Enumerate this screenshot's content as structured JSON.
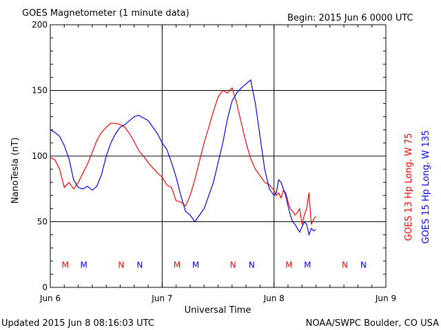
{
  "header": {
    "title": "GOES Magnetometer (1 minute data)",
    "begin": "Begin:  2015 Jun 6 0000 UTC"
  },
  "footer": {
    "updated": "Updated 2015 Jun  8 08:16:03 UTC",
    "source": "NOAA/SWPC Boulder, CO USA"
  },
  "colors": {
    "red": "#ff0000",
    "blue": "#0000ff",
    "axis": "#000000"
  },
  "chart_data": {
    "type": "line",
    "xlabel": "Universal Time",
    "ylabel": "NanoTesla (nT)",
    "xlim": [
      0,
      72
    ],
    "ylim": [
      0,
      200
    ],
    "x_unit": "hours since Jun 6 0000 UTC",
    "x_ticks": [
      {
        "value": 0,
        "label": "Jun 6"
      },
      {
        "value": 24,
        "label": "Jun 7"
      },
      {
        "value": 48,
        "label": "Jun 8"
      },
      {
        "value": 72,
        "label": "Jun 9"
      }
    ],
    "y_ticks": [
      {
        "value": 0,
        "label": "0"
      },
      {
        "value": 50,
        "label": "50"
      },
      {
        "value": 100,
        "label": "100"
      },
      {
        "value": 150,
        "label": "150"
      },
      {
        "value": 200,
        "label": "200"
      }
    ],
    "grid": true,
    "series": [
      {
        "name": "GOES 13 Hp  Long. W 75",
        "color": "#ff0000",
        "x": [
          0,
          1,
          2,
          3,
          4,
          5,
          6,
          7,
          8,
          9,
          10,
          11,
          12,
          13,
          14,
          15,
          16,
          17,
          18,
          19,
          20,
          21,
          22,
          23,
          24,
          25,
          26,
          27,
          28,
          29,
          30,
          31,
          32,
          33,
          34,
          35,
          36,
          37,
          38,
          39,
          40,
          41,
          42,
          43,
          44,
          45,
          46,
          47,
          48,
          48.5,
          49,
          49.5,
          50,
          50.5,
          51,
          51.5,
          52,
          52.5,
          53,
          53.5,
          54,
          54.5,
          55,
          55.5,
          56,
          56.5,
          57
        ],
        "values": [
          99,
          97,
          90,
          76,
          80,
          75,
          80,
          87,
          94,
          103,
          112,
          118,
          122,
          125,
          125,
          124,
          122,
          117,
          111,
          104,
          100,
          95,
          91,
          87,
          84,
          78,
          76,
          66,
          65,
          62,
          70,
          82,
          96,
          110,
          122,
          134,
          145,
          150,
          148,
          152,
          140,
          125,
          110,
          98,
          90,
          85,
          80,
          78,
          74,
          70,
          72,
          68,
          74,
          72,
          65,
          60,
          58,
          55,
          57,
          60,
          48,
          55,
          60,
          72,
          48,
          52,
          54
        ]
      },
      {
        "name": "GOES 15 Hp  Long. W 135",
        "color": "#0000ff",
        "x": [
          0,
          1,
          2,
          3,
          4,
          5,
          6,
          7,
          8,
          9,
          10,
          11,
          12,
          13,
          14,
          15,
          16,
          17,
          18,
          19,
          20,
          21,
          22,
          23,
          24,
          25,
          26,
          27,
          28,
          29,
          30,
          31,
          32,
          33,
          34,
          35,
          36,
          37,
          38,
          39,
          40,
          41,
          42,
          43,
          44,
          45,
          46,
          47,
          48,
          48.5,
          49,
          49.5,
          50,
          50.5,
          51,
          51.5,
          52,
          52.5,
          53,
          53.5,
          54,
          54.5,
          55,
          55.5,
          56,
          56.5,
          57
        ],
        "values": [
          120,
          118,
          115,
          108,
          98,
          82,
          76,
          75,
          77,
          74,
          77,
          86,
          100,
          110,
          117,
          122,
          124,
          127,
          130,
          131,
          129,
          127,
          122,
          117,
          110,
          105,
          95,
          84,
          70,
          58,
          55,
          50,
          55,
          60,
          70,
          80,
          95,
          110,
          128,
          142,
          148,
          152,
          155,
          158,
          140,
          115,
          90,
          75,
          70,
          72,
          82,
          80,
          75,
          70,
          62,
          55,
          50,
          48,
          45,
          42,
          46,
          50,
          48,
          40,
          45,
          43,
          44
        ]
      }
    ],
    "event_markers": [
      {
        "label": "M",
        "x": 3.2,
        "color": "#ff0000"
      },
      {
        "label": "M",
        "x": 7.2,
        "color": "#0000ff"
      },
      {
        "label": "N",
        "x": 15.2,
        "color": "#ff0000"
      },
      {
        "label": "N",
        "x": 19.2,
        "color": "#0000ff"
      },
      {
        "label": "M",
        "x": 27.2,
        "color": "#ff0000"
      },
      {
        "label": "M",
        "x": 31.2,
        "color": "#0000ff"
      },
      {
        "label": "N",
        "x": 39.2,
        "color": "#ff0000"
      },
      {
        "label": "N",
        "x": 43.2,
        "color": "#0000ff"
      },
      {
        "label": "M",
        "x": 51.2,
        "color": "#ff0000"
      },
      {
        "label": "M",
        "x": 55.2,
        "color": "#0000ff"
      },
      {
        "label": "N",
        "x": 63.2,
        "color": "#ff0000"
      },
      {
        "label": "N",
        "x": 67.2,
        "color": "#0000ff"
      }
    ],
    "marker_level": 17
  }
}
